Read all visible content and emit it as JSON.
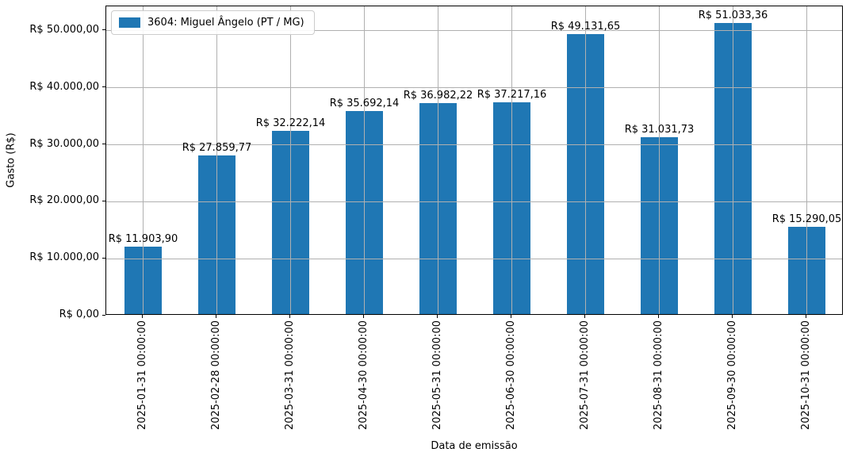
{
  "chart_data": {
    "type": "bar",
    "title": "",
    "xlabel": "Data de emissão",
    "ylabel": "Gasto (R$)",
    "categories": [
      "2025-01-31 00:00:00",
      "2025-02-28 00:00:00",
      "2025-03-31 00:00:00",
      "2025-04-30 00:00:00",
      "2025-05-31 00:00:00",
      "2025-06-30 00:00:00",
      "2025-07-31 00:00:00",
      "2025-08-31 00:00:00",
      "2025-09-30 00:00:00",
      "2025-10-31 00:00:00"
    ],
    "series": [
      {
        "name": "3604: Miguel Ângelo (PT / MG)",
        "color": "#1f77b4",
        "values": [
          11903.9,
          27859.77,
          32222.14,
          35692.14,
          36982.22,
          37217.16,
          49131.65,
          31031.73,
          51033.36,
          15290.05
        ],
        "value_labels": [
          "R$ 11.903,90",
          "R$ 27.859,77",
          "R$ 32.222,14",
          "R$ 35.692,14",
          "R$ 36.982,22",
          "R$ 37.217,16",
          "R$ 49.131,65",
          "R$ 31.031,73",
          "R$ 51.033,36",
          "R$ 15.290,05"
        ]
      }
    ],
    "ytick_values": [
      0,
      10000,
      20000,
      30000,
      40000,
      50000
    ],
    "ytick_labels": [
      "R$ 0,00",
      "R$ 10.000,00",
      "R$ 20.000,00",
      "R$ 30.000,00",
      "R$ 40.000,00",
      "R$ 50.000,00"
    ],
    "ylim": [
      0,
      54300
    ],
    "grid": true,
    "grid_color": "#b0b0b0",
    "legend_position": "upper left"
  }
}
